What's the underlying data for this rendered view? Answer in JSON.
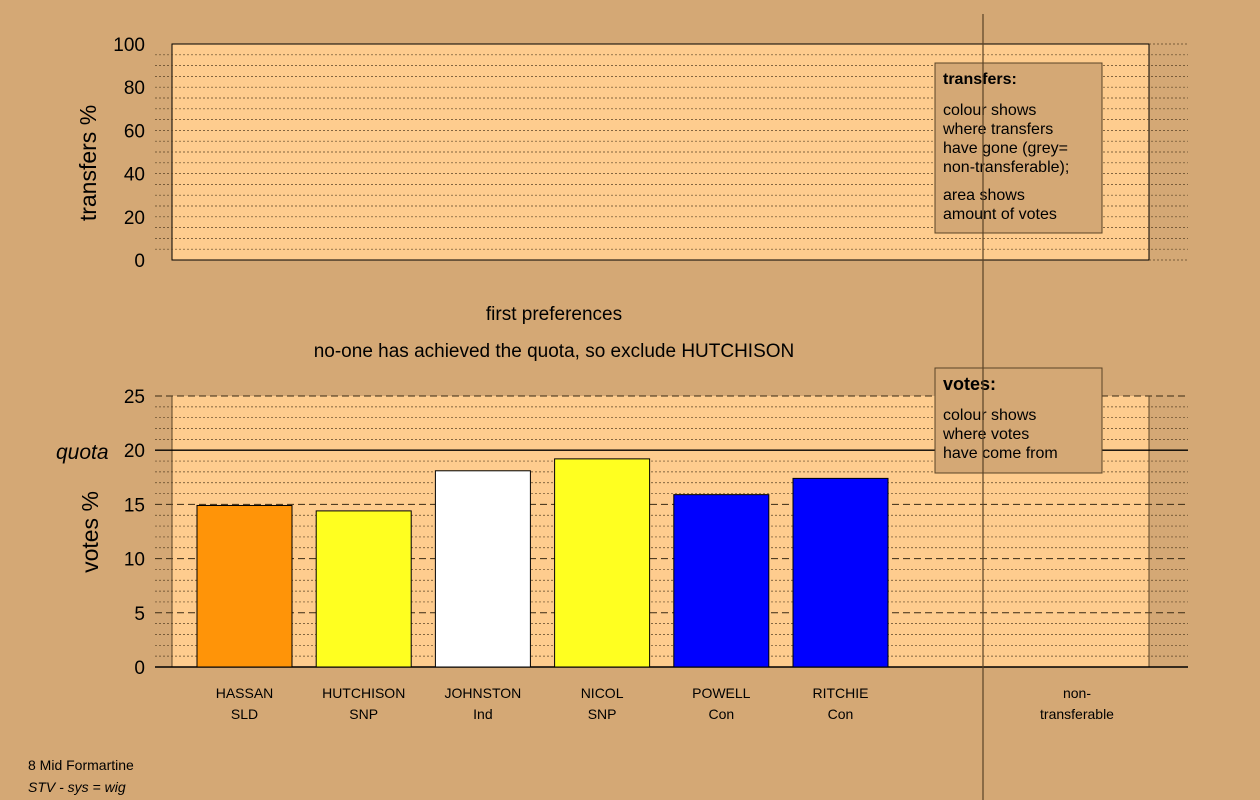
{
  "colors": {
    "background": "#d4a875",
    "panel": "#fecc8e",
    "axis": "#000000",
    "divider": "#5a4326"
  },
  "top_panel": {
    "ylabel": "transfers %",
    "ticks": [
      "0",
      "20",
      "40",
      "60",
      "80",
      "100"
    ],
    "legend": {
      "title": "transfers:",
      "lines1": [
        "colour shows",
        "where transfers",
        "have gone (grey=",
        "non-transferable);"
      ],
      "lines2": [
        "area shows",
        "amount of votes"
      ]
    }
  },
  "caption": {
    "line1": "first preferences",
    "line2": "no-one has achieved the quota, so exclude HUTCHISON"
  },
  "bottom_panel": {
    "ylabel": "votes %",
    "quota_label": "quota",
    "ticks": [
      "0",
      "5",
      "10",
      "15",
      "20",
      "25"
    ],
    "legend": {
      "title": "votes:",
      "lines": [
        "colour shows",
        "where votes",
        "have come from"
      ]
    }
  },
  "non_transferable": {
    "line1": "non-",
    "line2": "transferable"
  },
  "footer": {
    "line1": "8 Mid Formartine",
    "line2": "STV - sys = wig"
  },
  "chart_data": {
    "type": "bar",
    "title": "first preferences",
    "ylabel": "votes %",
    "ylim": [
      0,
      25
    ],
    "quota": 20,
    "categories": [
      "HASSAN",
      "HUTCHISON",
      "JOHNSTON",
      "NICOL",
      "POWELL",
      "RITCHIE"
    ],
    "parties": [
      "SLD",
      "SNP",
      "Ind",
      "SNP",
      "Con",
      "Con"
    ],
    "values": [
      14.9,
      14.4,
      18.1,
      19.2,
      15.9,
      17.4
    ],
    "colors": [
      "#ff9408",
      "#ffff20",
      "#ffffff",
      "#ffff20",
      "#0000ff",
      "#0000ff"
    ],
    "top_ylabel": "transfers %",
    "top_ylim": [
      0,
      100
    ]
  }
}
